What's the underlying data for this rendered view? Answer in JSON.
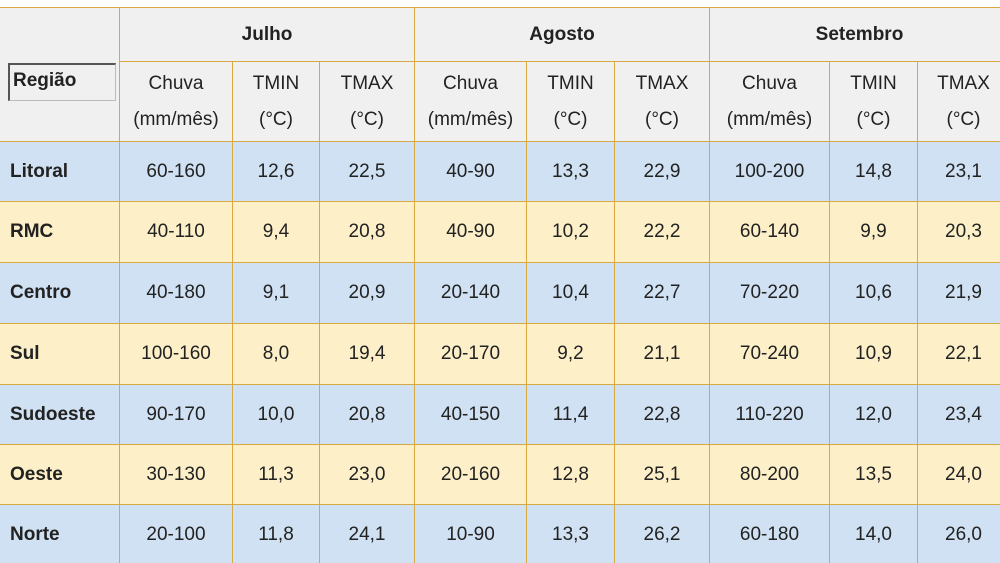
{
  "table": {
    "region_header": "Região",
    "months": [
      "Julho",
      "Agosto",
      "Setembro"
    ],
    "columns": [
      {
        "name": "Chuva",
        "unit": "(mm/mês)"
      },
      {
        "name": "TMIN",
        "unit": "(°C)"
      },
      {
        "name": "TMAX",
        "unit": "(°C)"
      },
      {
        "name": "Chuva",
        "unit": "(mm/mês)"
      },
      {
        "name": "TMIN",
        "unit": "(°C)"
      },
      {
        "name": "TMAX",
        "unit": "(°C)"
      },
      {
        "name": "Chuva",
        "unit": "(mm/mês)"
      },
      {
        "name": "TMIN",
        "unit": "(°C)"
      },
      {
        "name": "TMAX",
        "unit": "(°C)"
      }
    ],
    "rows": [
      {
        "region": "Litoral",
        "cells": [
          "60-160",
          "12,6",
          "22,5",
          "40-90",
          "13,3",
          "22,9",
          "100-200",
          "14,8",
          "23,1"
        ]
      },
      {
        "region": "RMC",
        "cells": [
          "40-110",
          "9,4",
          "20,8",
          "40-90",
          "10,2",
          "22,2",
          "60-140",
          "9,9",
          "20,3"
        ]
      },
      {
        "region": "Centro",
        "cells": [
          "40-180",
          "9,1",
          "20,9",
          "20-140",
          "10,4",
          "22,7",
          "70-220",
          "10,6",
          "21,9"
        ]
      },
      {
        "region": "Sul",
        "cells": [
          "100-160",
          "8,0",
          "19,4",
          "20-170",
          "9,2",
          "21,1",
          "70-240",
          "10,9",
          "22,1"
        ]
      },
      {
        "region": "Sudoeste",
        "cells": [
          "90-170",
          "10,0",
          "20,8",
          "40-150",
          "11,4",
          "22,8",
          "110-220",
          "12,0",
          "23,4"
        ]
      },
      {
        "region": "Oeste",
        "cells": [
          "30-130",
          "11,3",
          "23,0",
          "20-160",
          "12,8",
          "25,1",
          "80-200",
          "13,5",
          "24,0"
        ]
      },
      {
        "region": "Norte",
        "cells": [
          "20-100",
          "11,8",
          "24,1",
          "10-90",
          "13,3",
          "26,2",
          "60-180",
          "14,0",
          "26,0"
        ]
      }
    ]
  }
}
